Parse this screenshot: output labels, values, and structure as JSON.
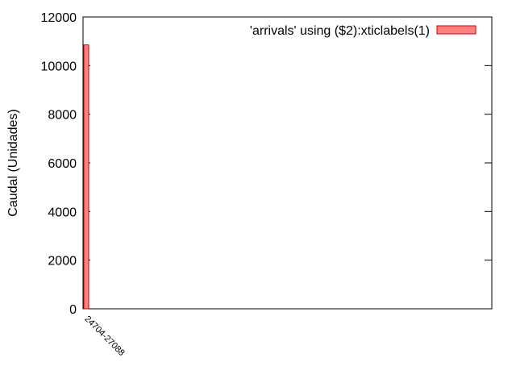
{
  "chart_data": {
    "type": "bar",
    "categories": [
      "24704-27088"
    ],
    "series": [
      {
        "name": "'arrivals' using ($2):xticlabels(1)",
        "values": [
          10850
        ],
        "color": "#ff8080",
        "edge_color": "#cc0000"
      }
    ],
    "xlabel": "",
    "ylabel": "Caudal (Unidades)",
    "ylim": [
      0,
      12000
    ],
    "yticks": [
      "0",
      "2000",
      "4000",
      "6000",
      "8000",
      "10000",
      "12000"
    ],
    "grid": false,
    "legend_position": "top-right"
  }
}
